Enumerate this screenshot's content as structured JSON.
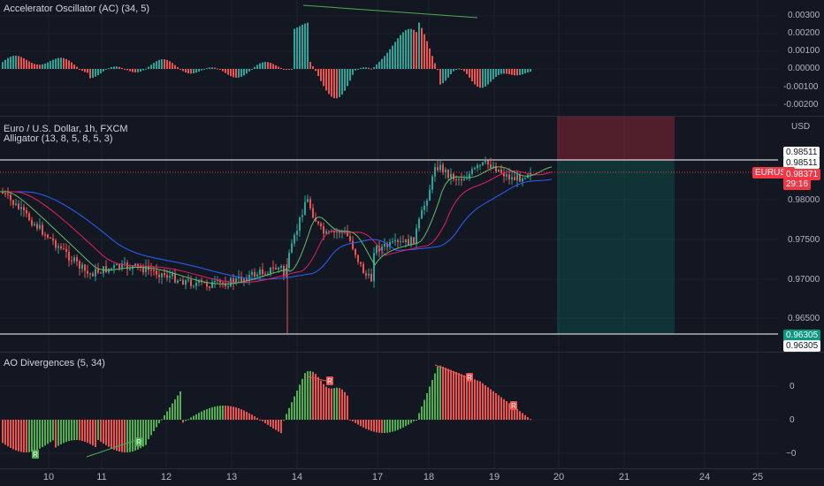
{
  "top_pane": {
    "legend": "Accelerator Oscillator (AC) (34, 5)",
    "y_ticks": [
      "0.00300",
      "0.00200",
      "0.00100",
      "0.00000",
      "-0.00100",
      "-0.00200"
    ]
  },
  "main_pane": {
    "legend_symbol": "Euro / U.S. Dollar, 1h, FXCM",
    "legend_alligator": "Alligator (13, 8, 5, 8, 5, 3)",
    "currency": "USD",
    "y_ticks": [
      "0.98000",
      "0.97500",
      "0.97000",
      "0.96500"
    ],
    "tag_top_1": "0.98511",
    "tag_top_2": "0.98511",
    "symbol_badge": "EURUSD",
    "price_tag": "0.98371",
    "countdown": "29:16",
    "tag_bottom_1": "0.96305",
    "tag_bottom_2": "0.96305",
    "colors": {
      "up": "#26a69a",
      "down": "#ef5350",
      "price_tag": "#f23645"
    }
  },
  "bottom_pane": {
    "legend": "AO Divergences (5, 34)",
    "y_ticks": [
      "0",
      "0",
      "−0"
    ],
    "markers": [
      "R",
      "R",
      "R",
      "R",
      "R"
    ]
  },
  "x_axis": {
    "labels": [
      "10",
      "11",
      "12",
      "13",
      "14",
      "17",
      "18",
      "19",
      "20",
      "21",
      "24",
      "25"
    ]
  },
  "icons": {
    "divergence_marker": "letter-badge-icon"
  }
}
